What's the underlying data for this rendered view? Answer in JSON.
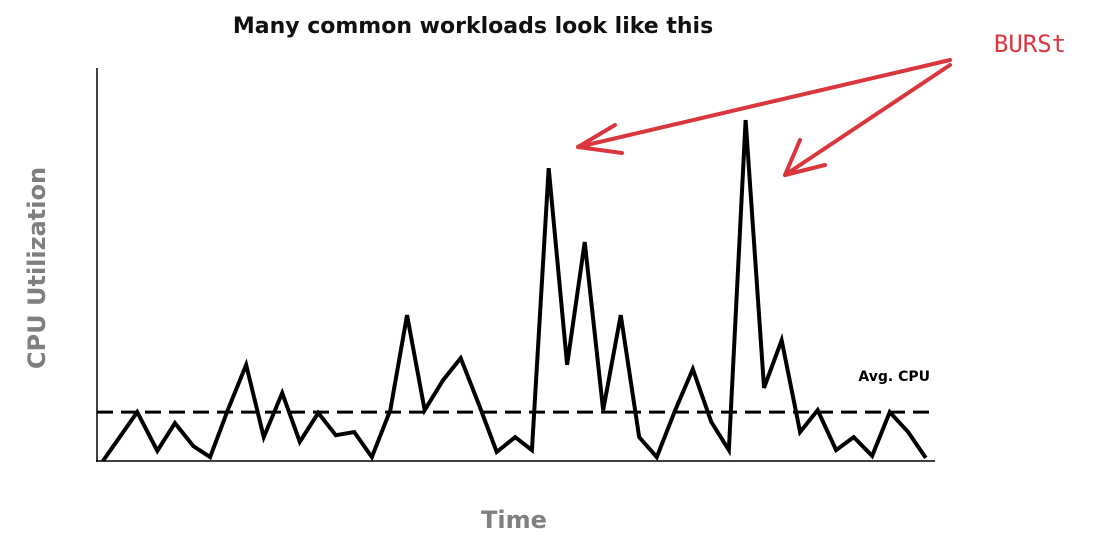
{
  "chart_data": {
    "type": "line",
    "title": "Many common workloads look like this",
    "xlabel": "Time",
    "ylabel": "CPU Utilization",
    "x": [
      0.7,
      4.8,
      7.2,
      9.3,
      11.5,
      13.5,
      15.6,
      17.8,
      19.9,
      22.1,
      24.2,
      26.4,
      28.5,
      30.7,
      32.8,
      35.0,
      37.0,
      39.1,
      41.3,
      43.4,
      45.6,
      47.7,
      49.9,
      51.9,
      53.9,
      56.1,
      58.2,
      60.4,
      62.5,
      64.7,
      66.8,
      69.0,
      71.1,
      73.3,
      75.4,
      77.4,
      79.6,
      81.7,
      83.9,
      86.0,
      88.2,
      90.3,
      92.5,
      94.6,
      96.8,
      98.9
    ],
    "values": [
      0,
      12.5,
      2.6,
      9.7,
      3.8,
      1.0,
      13.0,
      24.6,
      6.1,
      17.4,
      4.9,
      12.3,
      6.6,
      7.4,
      1.0,
      13.0,
      37.3,
      13.0,
      20.7,
      26.3,
      14.3,
      2.3,
      6.1,
      2.8,
      74.9,
      24.6,
      56.0,
      13.0,
      37.3,
      6.1,
      1.0,
      13.0,
      23.5,
      10.0,
      2.8,
      87.2,
      18.7,
      30.9,
      7.4,
      13.0,
      2.8,
      6.1,
      1.3,
      12.5,
      7.4,
      0.8
    ],
    "color": "#000000",
    "xlim": [
      0,
      100
    ],
    "ylim": [
      0,
      100
    ],
    "avg_line": {
      "label": "Avg. CPU",
      "value": 12.5
    },
    "annotation": {
      "text": "BURSt",
      "color": "#d9363e"
    }
  }
}
